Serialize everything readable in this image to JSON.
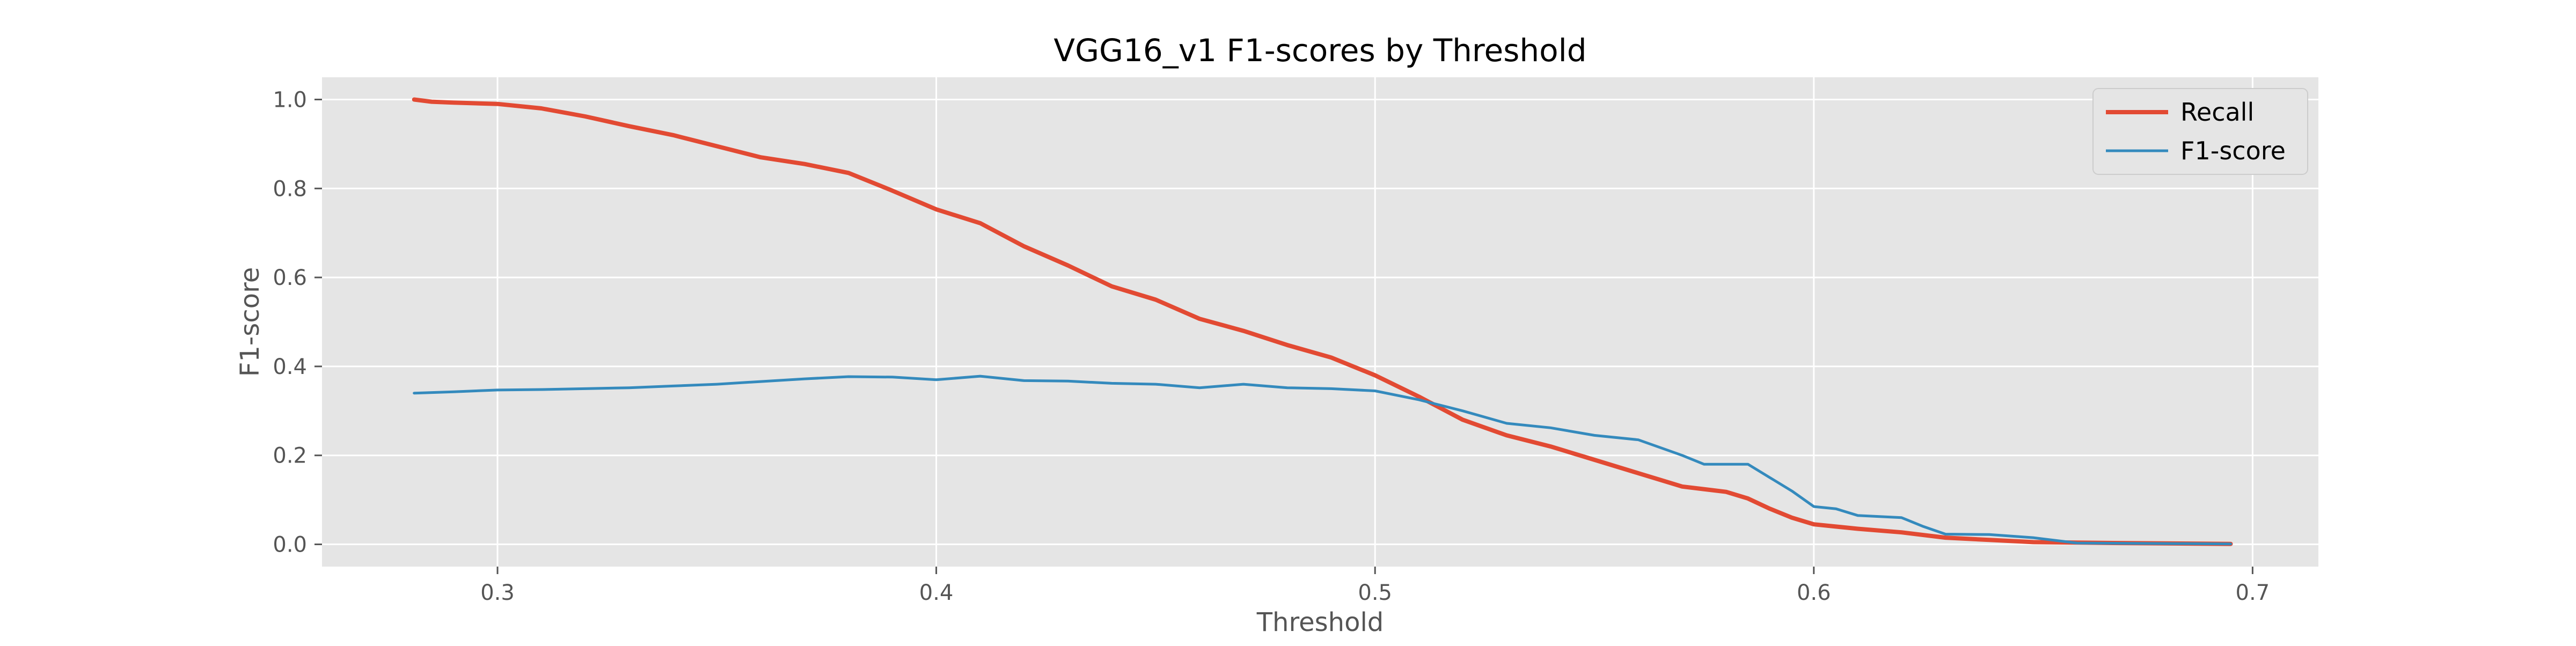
{
  "chart_data": {
    "type": "line",
    "title": "VGG16_v1 F1-scores by Threshold",
    "xlabel": "Threshold",
    "ylabel": "F1-score",
    "xlim": [
      0.26,
      0.715
    ],
    "ylim": [
      -0.05,
      1.05
    ],
    "xticks": [
      0.3,
      0.4,
      0.5,
      0.6,
      0.7
    ],
    "xtick_labels": [
      "0.3",
      "0.4",
      "0.5",
      "0.6",
      "0.7"
    ],
    "yticks": [
      0.0,
      0.2,
      0.4,
      0.6,
      0.8,
      1.0
    ],
    "ytick_labels": [
      "0.0",
      "0.2",
      "0.4",
      "0.6",
      "0.8",
      "1.0"
    ],
    "grid": true,
    "legend_position": "top-right",
    "series": [
      {
        "name": "Recall",
        "color": "#E24A33",
        "x": [
          0.281,
          0.285,
          0.29,
          0.3,
          0.31,
          0.32,
          0.33,
          0.34,
          0.35,
          0.36,
          0.37,
          0.38,
          0.39,
          0.4,
          0.41,
          0.42,
          0.43,
          0.44,
          0.45,
          0.46,
          0.47,
          0.48,
          0.49,
          0.5,
          0.51,
          0.52,
          0.53,
          0.54,
          0.55,
          0.56,
          0.57,
          0.58,
          0.585,
          0.59,
          0.595,
          0.6,
          0.61,
          0.62,
          0.63,
          0.64,
          0.65,
          0.67,
          0.695
        ],
        "y": [
          1.0,
          0.995,
          0.993,
          0.99,
          0.98,
          0.962,
          0.94,
          0.92,
          0.895,
          0.87,
          0.855,
          0.835,
          0.795,
          0.753,
          0.722,
          0.67,
          0.627,
          0.58,
          0.55,
          0.507,
          0.48,
          0.448,
          0.42,
          0.38,
          0.332,
          0.28,
          0.245,
          0.22,
          0.19,
          0.16,
          0.13,
          0.118,
          0.103,
          0.08,
          0.06,
          0.045,
          0.035,
          0.027,
          0.015,
          0.01,
          0.005,
          0.003,
          0.001
        ]
      },
      {
        "name": "F1-score",
        "color": "#348ABD",
        "x": [
          0.281,
          0.29,
          0.3,
          0.31,
          0.32,
          0.33,
          0.34,
          0.35,
          0.36,
          0.37,
          0.38,
          0.39,
          0.4,
          0.41,
          0.42,
          0.43,
          0.44,
          0.45,
          0.46,
          0.47,
          0.48,
          0.49,
          0.5,
          0.51,
          0.52,
          0.53,
          0.54,
          0.55,
          0.56,
          0.57,
          0.575,
          0.585,
          0.59,
          0.595,
          0.6,
          0.605,
          0.61,
          0.62,
          0.625,
          0.63,
          0.64,
          0.65,
          0.66,
          0.695
        ],
        "y": [
          0.34,
          0.343,
          0.347,
          0.348,
          0.35,
          0.352,
          0.356,
          0.36,
          0.366,
          0.372,
          0.377,
          0.376,
          0.37,
          0.378,
          0.368,
          0.367,
          0.362,
          0.36,
          0.352,
          0.36,
          0.352,
          0.35,
          0.345,
          0.325,
          0.3,
          0.272,
          0.262,
          0.245,
          0.235,
          0.2,
          0.18,
          0.18,
          0.15,
          0.12,
          0.085,
          0.08,
          0.065,
          0.06,
          0.04,
          0.023,
          0.022,
          0.015,
          0.003,
          0.001
        ]
      }
    ]
  }
}
